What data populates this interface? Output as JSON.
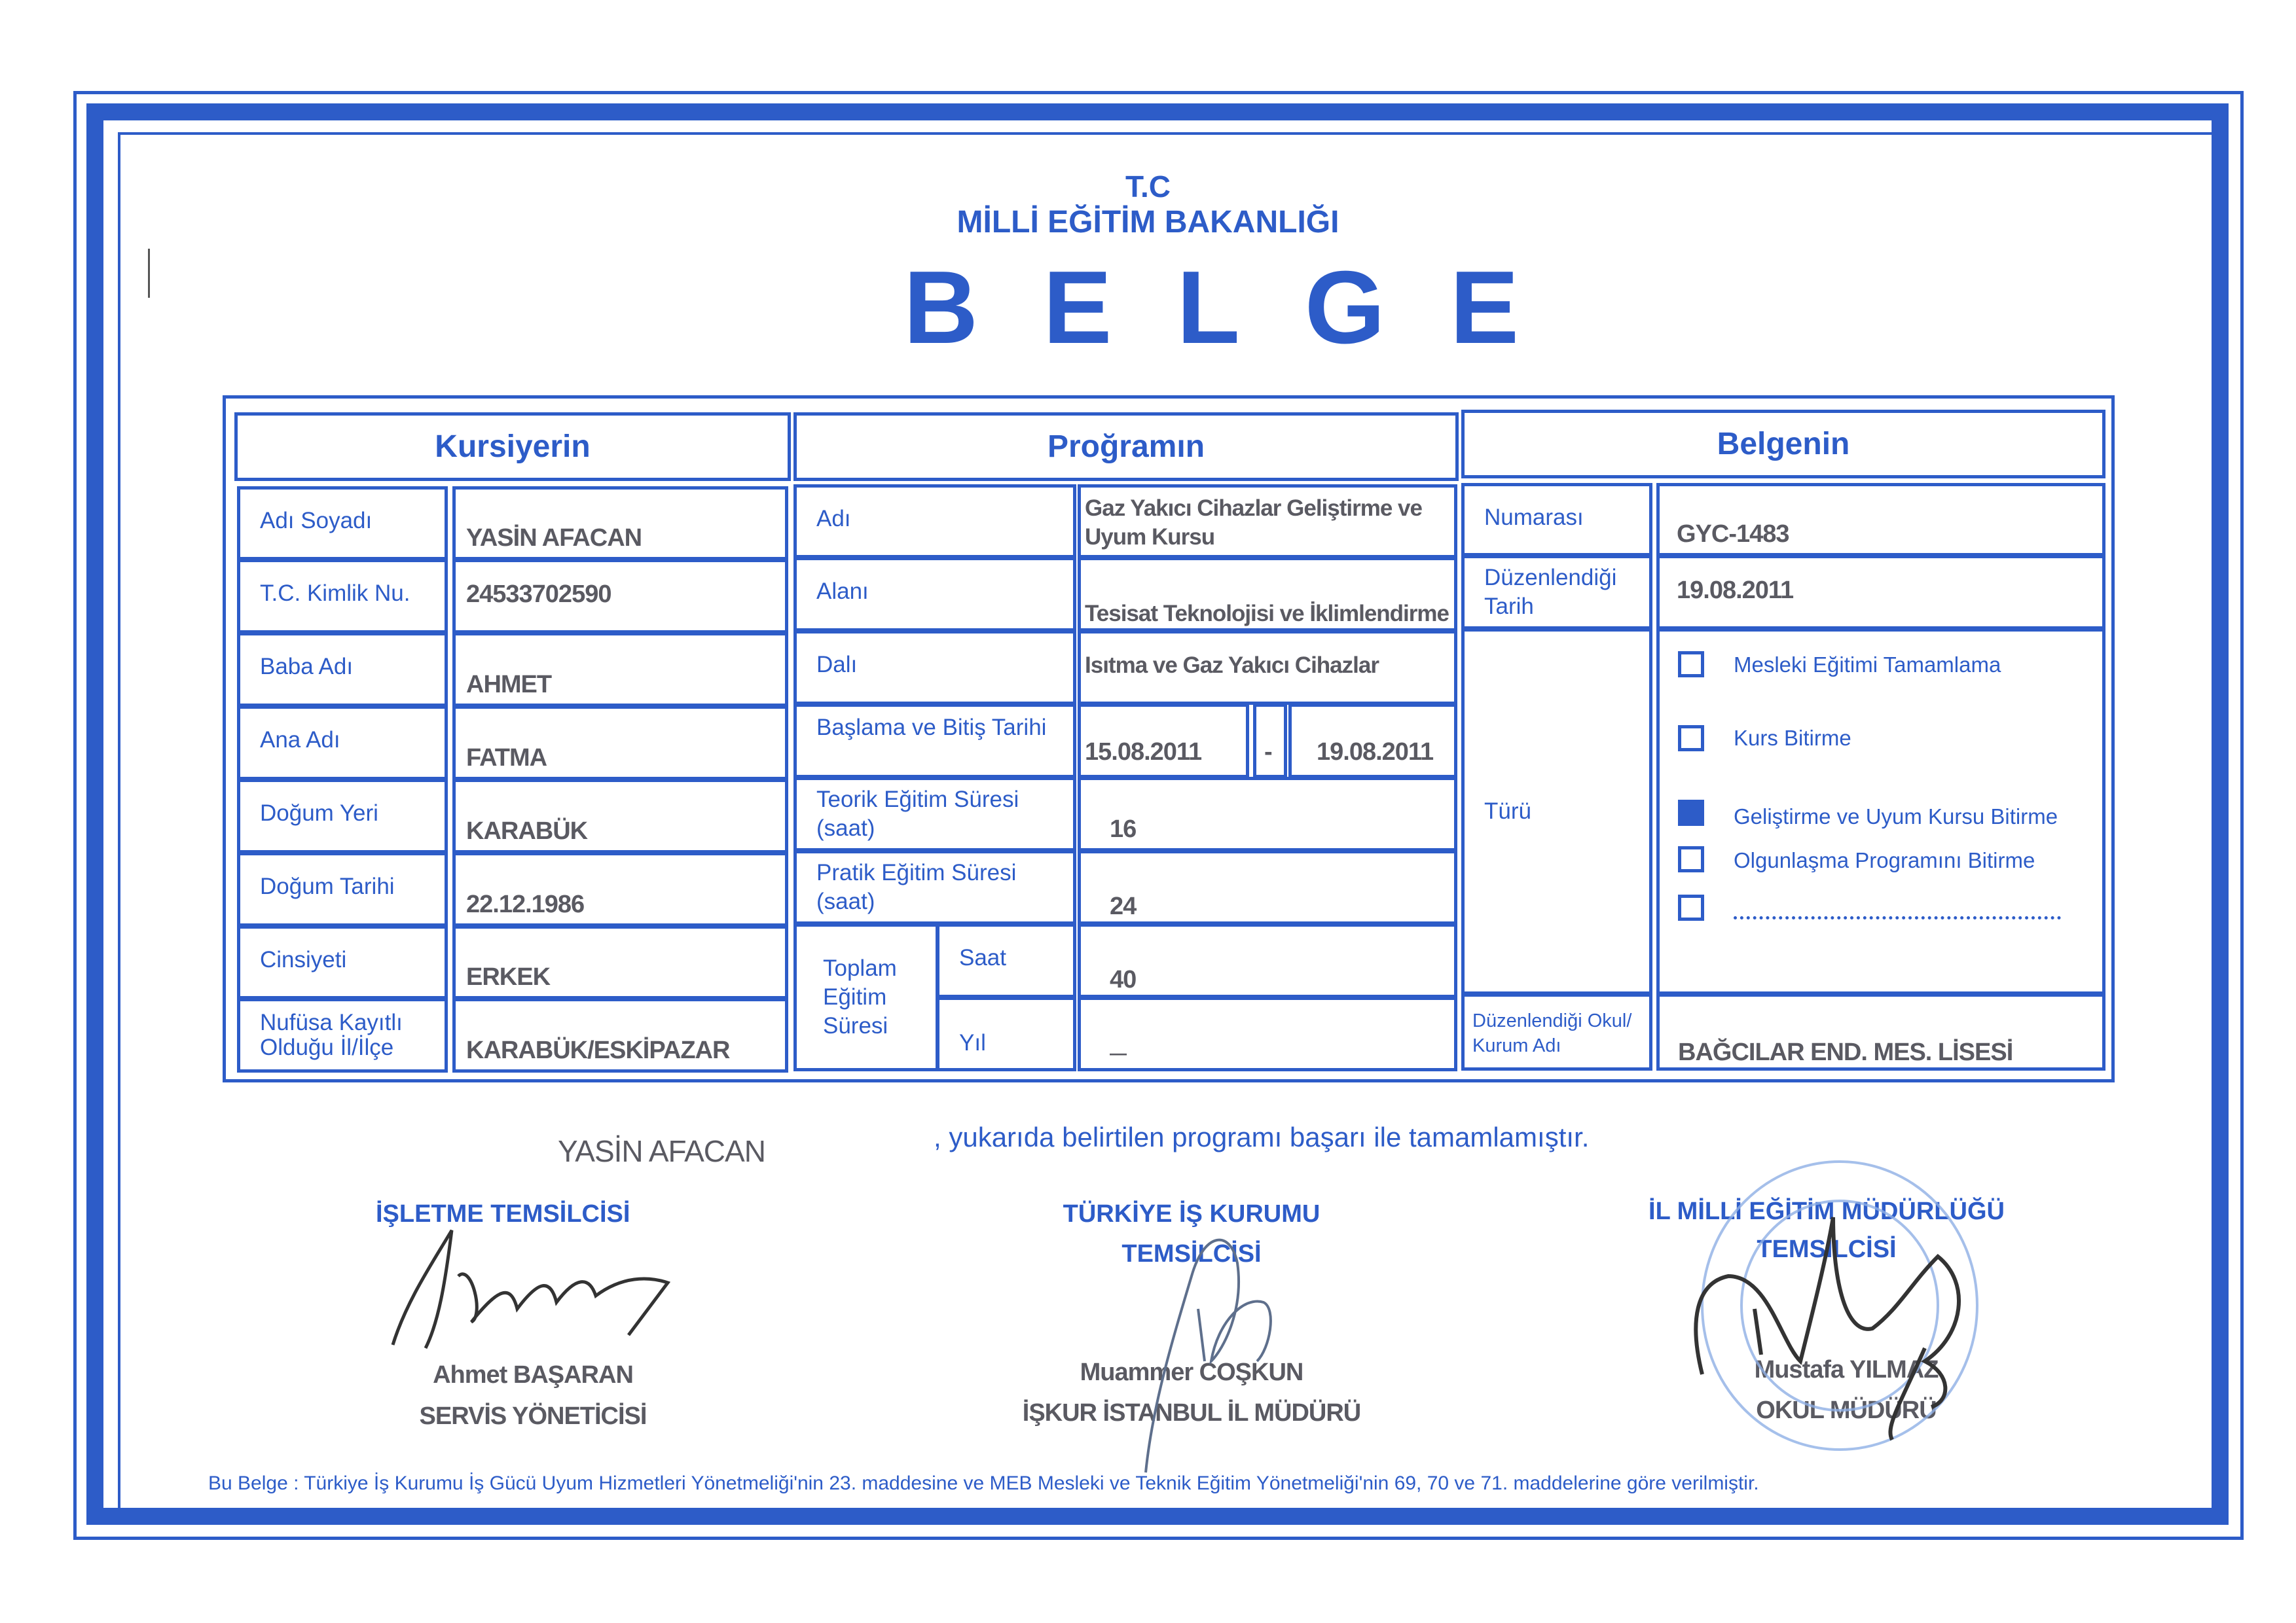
{
  "header": {
    "tc": "T.C",
    "ministry": "MİLLİ EĞİTİM BAKANLIĞI",
    "title_letters": [
      "B",
      "E",
      "L",
      "G",
      "E"
    ]
  },
  "sections": {
    "kursiyerin": "Kursiyerin",
    "programin": "Proğramın",
    "belgenin": "Belgenin"
  },
  "kursiyer": {
    "rows": [
      {
        "label": "Adı Soyadı",
        "value": "YASİN AFACAN"
      },
      {
        "label": "T.C. Kimlik Nu.",
        "value": "24533702590"
      },
      {
        "label": "Baba Adı",
        "value": "AHMET"
      },
      {
        "label": "Ana Adı",
        "value": "FATMA"
      },
      {
        "label": "Doğum Yeri",
        "value": "KARABÜK"
      },
      {
        "label": "Doğum Tarihi",
        "value": "22.12.1986"
      },
      {
        "label": "Cinsiyeti",
        "value": "ERKEK"
      },
      {
        "label": "Nufüsa Kayıtlı Olduğu İl/İlçe",
        "value": "KARABÜK/ESKİPAZAR"
      }
    ]
  },
  "program": {
    "adi_label": "Adı",
    "adi_value": "Gaz Yakıcı Cihazlar Geliştirme ve Uyum Kursu",
    "alani_label": "Alanı",
    "alani_value": "Tesisat Teknolojisi ve İklimlendirme",
    "dali_label": "Dalı",
    "dali_value": "Isıtma ve Gaz Yakıcı Cihazlar",
    "tarih_label": "Başlama ve Bitiş Tarihi",
    "baslama": "15.08.2011",
    "dash": "-",
    "bitis": "19.08.2011",
    "teorik_label": "Teorik Eğitim Süresi (saat)",
    "teorik_value": "16",
    "pratik_label": "Pratik Eğitim Süresi (saat)",
    "pratik_value": "24",
    "toplam_label": "Toplam Eğitim Süresi",
    "saat_label": "Saat",
    "saat_value": "40",
    "yil_label": "Yıl",
    "yil_value": "—"
  },
  "belge": {
    "numarasi_label": "Numarası",
    "numarasi_value": "GYC-1483",
    "tarih_label": "Düzenlendiği Tarih",
    "tarih_value": "19.08.2011",
    "turu_label": "Türü",
    "types": [
      {
        "label": "Mesleki Eğitimi Tamamlama",
        "checked": false
      },
      {
        "label": "Kurs Bitirme",
        "checked": false
      },
      {
        "label": "Geliştirme ve Uyum Kursu Bitirme",
        "checked": true
      },
      {
        "label": "Olgunlaşma Programını Bitirme",
        "checked": false
      },
      {
        "label": "",
        "checked": false
      }
    ],
    "okul_label": "Düzenlendiği Okul/ Kurum Adı",
    "okul_value": "BAĞCILAR END. MES. LİSESİ"
  },
  "statement": {
    "name": "YASİN AFACAN",
    "text": ", yukarıda belirtilen programı başarı ile tamamlamıştır."
  },
  "signatories": [
    {
      "title_line1": "İŞLETME TEMSİLCİSİ",
      "title_line2": "",
      "name": "Ahmet BAŞARAN",
      "role": "SERVİS YÖNETİCİSİ"
    },
    {
      "title_line1": "TÜRKİYE İŞ KURUMU",
      "title_line2": "TEMSİLCİSİ",
      "name": "Muammer COŞKUN",
      "role": "İŞKUR İSTANBUL İL MÜDÜRÜ"
    },
    {
      "title_line1": "İL MİLLİ EĞİTİM MÜDÜRLÜĞÜ",
      "title_line2": "TEMSİLCİSİ",
      "name": "Mustafa YILMAZ",
      "role": "OKUL MÜDÜRÜ"
    }
  ],
  "footer": "Bu Belge : Türkiye İş Kurumu İş Gücü Uyum Hizmetleri Yönetmeliği'nin 23. maddesine ve MEB Mesleki ve Teknik Eğitim Yönetmeliği'nin 69, 70 ve 71. maddelerine göre verilmiştir.",
  "colors": {
    "accent": "#2d5cc8",
    "filled_text": "#5a5a62"
  }
}
